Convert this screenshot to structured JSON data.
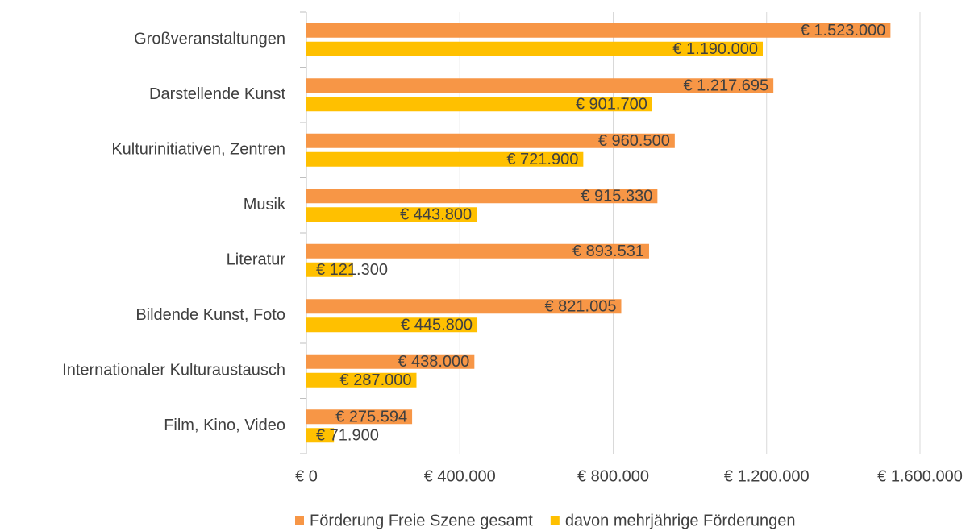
{
  "chart_data": {
    "type": "bar",
    "orientation": "horizontal",
    "categories": [
      "Großveranstaltungen",
      "Darstellende Kunst",
      "Kulturinitiativen, Zentren",
      "Musik",
      "Literatur",
      "Bildende Kunst, Foto",
      "Internationaler Kulturaustausch",
      "Film, Kino, Video"
    ],
    "series": [
      {
        "name": "Förderung Freie Szene gesamt",
        "color": "#f79646",
        "values": [
          1523000,
          1217695,
          960500,
          915330,
          893531,
          821005,
          438000,
          275594
        ],
        "value_labels": [
          "€ 1.523.000",
          "€ 1.217.695",
          "€ 960.500",
          "€ 915.330",
          "€ 893.531",
          "€ 821.005",
          "€ 438.000",
          "€ 275.594"
        ]
      },
      {
        "name": "davon mehrjährige Förderungen",
        "color": "#ffc000",
        "values": [
          1190000,
          901700,
          721900,
          443800,
          121300,
          445800,
          287000,
          71900
        ],
        "value_labels": [
          "€ 1.190.000",
          "€ 901.700",
          "€ 721.900",
          "€ 443.800",
          "€ 121.300",
          "€ 445.800",
          "€ 287.000",
          "€ 71.900"
        ]
      }
    ],
    "xlim": [
      0,
      1600000
    ],
    "xticks": [
      {
        "value": 0,
        "label": "€ 0"
      },
      {
        "value": 400000,
        "label": "€ 400.000"
      },
      {
        "value": 800000,
        "label": "€ 800.000"
      },
      {
        "value": 1200000,
        "label": "€ 1.200.000"
      },
      {
        "value": 1600000,
        "label": "€ 1.600.000"
      }
    ],
    "grid": true,
    "legend": "bottom"
  }
}
